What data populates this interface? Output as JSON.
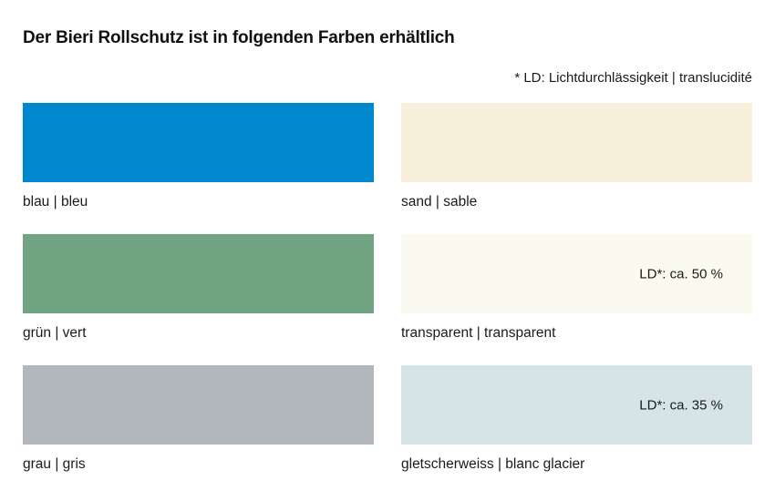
{
  "page": {
    "title": "Der Bieri Rollschutz ist in folgenden Farben erhältlich",
    "footnote": "* LD: Lichtdurchlässigkeit | translucidité"
  },
  "colors": {
    "background": "#ffffff",
    "text": "#1a1a1a",
    "title": "#111111"
  },
  "swatches": [
    {
      "label": "blau | bleu",
      "color": "#0088CE",
      "ld": ""
    },
    {
      "label": "sand | sable",
      "color": "#F7EFD9",
      "ld": ""
    },
    {
      "label": "grün | vert",
      "color": "#71A483",
      "ld": ""
    },
    {
      "label": "transparent | transparent",
      "color": "#FAFAF0",
      "ld": "LD*: ca. 50 %"
    },
    {
      "label": "grau | gris",
      "color": "#B2B7BD",
      "ld": ""
    },
    {
      "label": "gletscherweiss | blanc glacier",
      "color": "#D6E3E7",
      "ld": "LD*: ca. 35 %"
    }
  ]
}
